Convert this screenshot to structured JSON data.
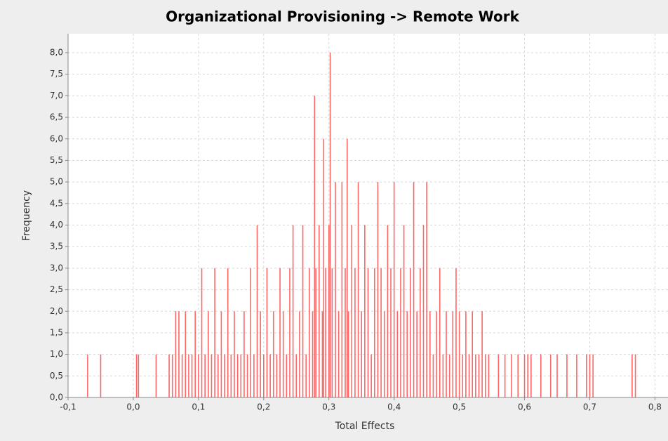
{
  "chart_data": {
    "type": "bar",
    "title": "Organizational Provisioning  -> Remote Work",
    "x_label": "Total Effects",
    "y_label": "Frequency",
    "color": "#ff6666",
    "grid": true,
    "xlim": [
      -0.1,
      0.82
    ],
    "ylim": [
      0,
      8.44
    ],
    "xticks": [
      {
        "value": -0.1,
        "label": "-0,1"
      },
      {
        "value": 0,
        "label": "0,0"
      },
      {
        "value": 0.1,
        "label": "0,1"
      },
      {
        "value": 0.2,
        "label": "0,2"
      },
      {
        "value": 0.3,
        "label": "0,3"
      },
      {
        "value": 0.4,
        "label": "0,4"
      },
      {
        "value": 0.5,
        "label": "0,5"
      },
      {
        "value": 0.6,
        "label": "0,6"
      },
      {
        "value": 0.7,
        "label": "0,7"
      },
      {
        "value": 0.8,
        "label": "0,8"
      }
    ],
    "yticks": [
      {
        "value": 0,
        "label": "0,0"
      },
      {
        "value": 0.5,
        "label": "0,5"
      },
      {
        "value": 1,
        "label": "1,0"
      },
      {
        "value": 1.5,
        "label": "1,5"
      },
      {
        "value": 2,
        "label": "2,0"
      },
      {
        "value": 2.5,
        "label": "2,5"
      },
      {
        "value": 3,
        "label": "3,0"
      },
      {
        "value": 3.5,
        "label": "3,5"
      },
      {
        "value": 4,
        "label": "4,0"
      },
      {
        "value": 4.5,
        "label": "4,5"
      },
      {
        "value": 5,
        "label": "5,0"
      },
      {
        "value": 5.5,
        "label": "5,5"
      },
      {
        "value": 6,
        "label": "6,0"
      },
      {
        "value": 6.5,
        "label": "6,5"
      },
      {
        "value": 7,
        "label": "7,0"
      },
      {
        "value": 7.5,
        "label": "7,5"
      },
      {
        "value": 8,
        "label": "8,0"
      }
    ],
    "x": [
      -0.07,
      -0.05,
      0.005,
      0.008,
      0.035,
      0.055,
      0.06,
      0.065,
      0.07,
      0.075,
      0.08,
      0.085,
      0.09,
      0.095,
      0.1,
      0.105,
      0.11,
      0.115,
      0.12,
      0.125,
      0.13,
      0.135,
      0.14,
      0.145,
      0.15,
      0.155,
      0.16,
      0.165,
      0.17,
      0.175,
      0.18,
      0.185,
      0.19,
      0.195,
      0.2,
      0.205,
      0.21,
      0.215,
      0.22,
      0.225,
      0.23,
      0.235,
      0.24,
      0.245,
      0.25,
      0.255,
      0.26,
      0.265,
      0.27,
      0.275,
      0.278,
      0.28,
      0.285,
      0.29,
      0.292,
      0.295,
      0.3,
      0.302,
      0.305,
      0.31,
      0.315,
      0.32,
      0.325,
      0.328,
      0.33,
      0.335,
      0.34,
      0.345,
      0.35,
      0.355,
      0.36,
      0.365,
      0.37,
      0.375,
      0.38,
      0.385,
      0.39,
      0.395,
      0.4,
      0.405,
      0.41,
      0.415,
      0.42,
      0.425,
      0.43,
      0.435,
      0.44,
      0.445,
      0.45,
      0.455,
      0.46,
      0.465,
      0.47,
      0.475,
      0.48,
      0.485,
      0.49,
      0.495,
      0.5,
      0.505,
      0.51,
      0.515,
      0.52,
      0.525,
      0.53,
      0.535,
      0.54,
      0.545,
      0.56,
      0.57,
      0.58,
      0.59,
      0.6,
      0.605,
      0.61,
      0.625,
      0.64,
      0.65,
      0.665,
      0.68,
      0.695,
      0.7,
      0.705,
      0.765,
      0.77
    ],
    "values": [
      1,
      1,
      1,
      1,
      1,
      1,
      1,
      2,
      2,
      1,
      2,
      1,
      1,
      2,
      1,
      3,
      1,
      2,
      1,
      3,
      1,
      2,
      1,
      3,
      1,
      2,
      1,
      1,
      2,
      1,
      3,
      1,
      4,
      2,
      1,
      3,
      1,
      2,
      1,
      3,
      2,
      1,
      3,
      4,
      1,
      2,
      4,
      1,
      3,
      2,
      7,
      3,
      4,
      2,
      6,
      3,
      4,
      8,
      3,
      5,
      2,
      5,
      3,
      6,
      2,
      4,
      3,
      5,
      2,
      4,
      3,
      1,
      3,
      5,
      3,
      2,
      4,
      3,
      5,
      2,
      3,
      4,
      2,
      3,
      5,
      2,
      3,
      4,
      5,
      2,
      1,
      2,
      3,
      1,
      2,
      1,
      2,
      3,
      2,
      1,
      2,
      1,
      2,
      1,
      1,
      2,
      1,
      1,
      1,
      1,
      1,
      1,
      1,
      1,
      1,
      1,
      1,
      1,
      1,
      1,
      1,
      1,
      1,
      1,
      1
    ]
  }
}
